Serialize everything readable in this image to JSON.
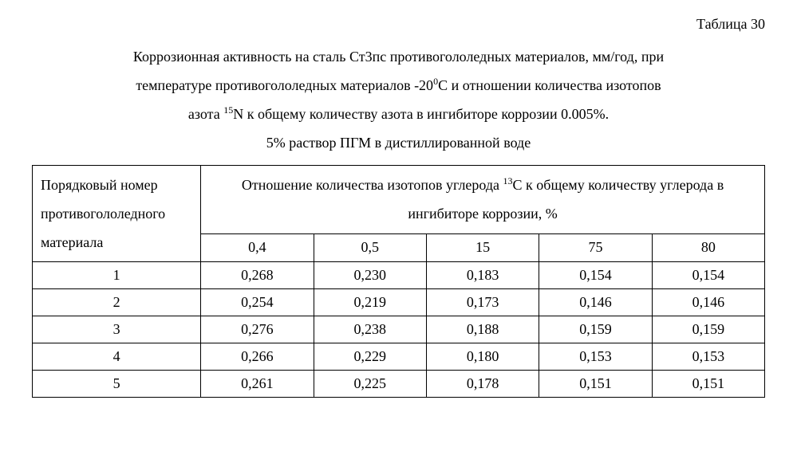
{
  "table_label": "Таблица 30",
  "caption_line1_a": "Коррозионная активность на сталь Ст3пс противогололедных материалов, мм/год, при",
  "caption_line2_a": "температуре противогололедных материалов -20",
  "caption_line2_sup": "0",
  "caption_line2_b": "С и отношении количества изотопов",
  "caption_line3_a": "азота ",
  "caption_line3_sup": "15",
  "caption_line3_b": "N  к общему количеству азота в ингибиторе коррозии 0.005%.",
  "caption_line4": "5% раствор ПГМ в дистиллированной воде",
  "row_header": "Порядковый номер противогололедного материала",
  "group_header_a": "Отношение количества изотопов углерода ",
  "group_header_sup": "13",
  "group_header_b": "С к общему количеству углерода в ингибиторе коррозии, %",
  "columns": [
    "0,4",
    "0,5",
    "15",
    "75",
    "80"
  ],
  "rows": [
    {
      "idx": "1",
      "vals": [
        "0,268",
        "0,230",
        "0,183",
        "0,154",
        "0,154"
      ]
    },
    {
      "idx": "2",
      "vals": [
        "0,254",
        "0,219",
        "0,173",
        "0,146",
        "0,146"
      ]
    },
    {
      "idx": "3",
      "vals": [
        "0,276",
        "0,238",
        "0,188",
        "0,159",
        "0,159"
      ]
    },
    {
      "idx": "4",
      "vals": [
        "0,266",
        "0,229",
        "0,180",
        "0,153",
        "0,153"
      ]
    },
    {
      "idx": "5",
      "vals": [
        "0,261",
        "0,225",
        "0,178",
        "0,151",
        "0,151"
      ]
    }
  ]
}
